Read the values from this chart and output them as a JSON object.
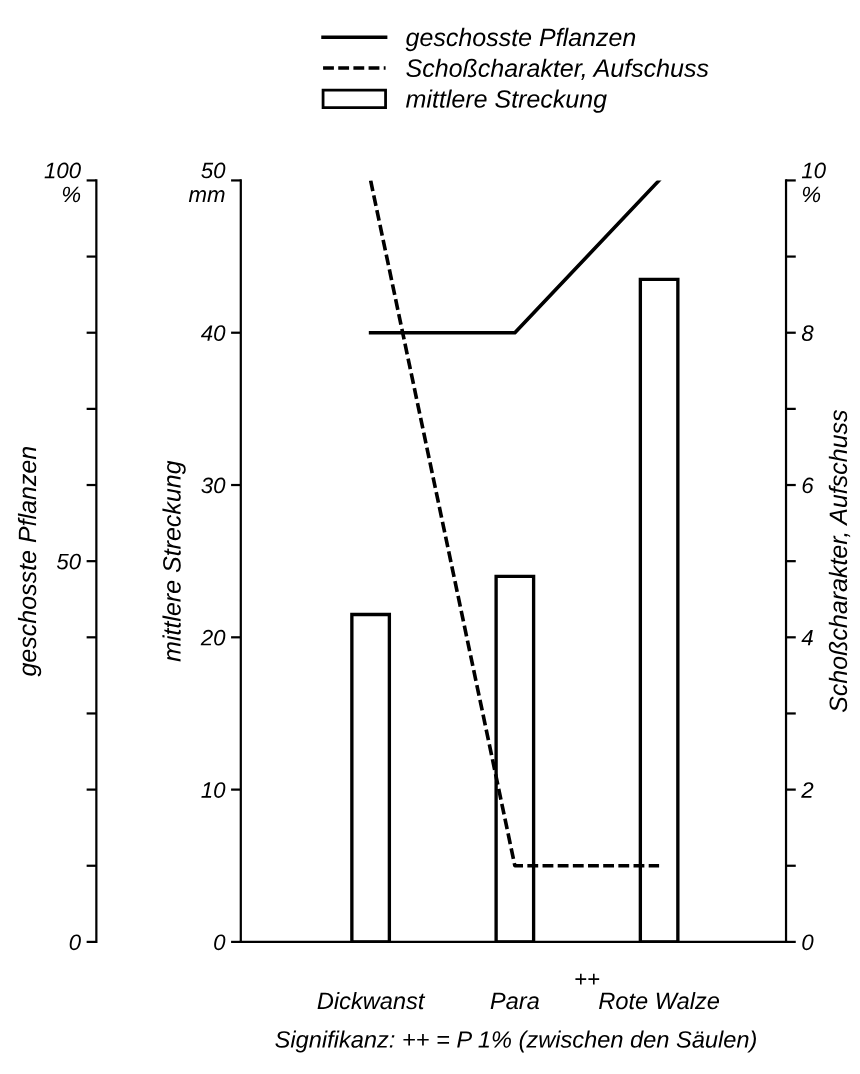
{
  "chart_data": {
    "type": "bar",
    "categories": [
      "Dickwanst",
      "Para",
      "Rote Walze"
    ],
    "ylabel": "mittlere Streckung",
    "y2label": "Schoßcharakter, Aufschuss",
    "y3label": "geschosste Pflanzen",
    "ylim": [
      0,
      50
    ],
    "yticks": [
      0,
      10,
      20,
      30,
      40,
      {
        "value": 50,
        "label": "50\nmm"
      }
    ],
    "y2lim": [
      0,
      10
    ],
    "y2ticks": [
      0,
      {
        "value": 1,
        "label": null
      },
      2,
      {
        "value": 3,
        "label": null
      },
      4,
      {
        "value": 5,
        "label": null
      },
      6,
      {
        "value": 7,
        "label": null
      },
      8,
      {
        "value": 9,
        "label": null
      },
      {
        "value": 10,
        "label": "10\n%"
      }
    ],
    "y3lim": [
      0,
      100
    ],
    "y3ticks": [
      0,
      {
        "value": 10,
        "label": null
      },
      {
        "value": 20,
        "label": null
      },
      {
        "value": 30,
        "label": null
      },
      {
        "value": 40,
        "label": null
      },
      50,
      {
        "value": 60,
        "label": null
      },
      {
        "value": 70,
        "label": null
      },
      {
        "value": 80,
        "label": null
      },
      {
        "value": 90,
        "label": null
      },
      {
        "value": 100,
        "label": "100\n%"
      }
    ],
    "series": [
      {
        "name": "geschosste Pflanzen",
        "type": "line",
        "axis": "y3",
        "color": "#000000",
        "line_style": "solid",
        "values": [
          80,
          80,
          100
        ]
      },
      {
        "name": "Schoßcharakter, Aufschuss",
        "type": "line",
        "axis": "y2",
        "color": "#000000",
        "line_style": "dashed",
        "values": [
          10,
          1,
          1
        ]
      },
      {
        "name": "mittlere Streckung",
        "color": "#ffffff",
        "values": [
          21.5,
          24,
          43.5
        ]
      }
    ],
    "annotations": [
      "++",
      "Signifikanz: ++ = P 1% (zwischen den Säulen)"
    ],
    "legend": "top",
    "grid": false
  }
}
